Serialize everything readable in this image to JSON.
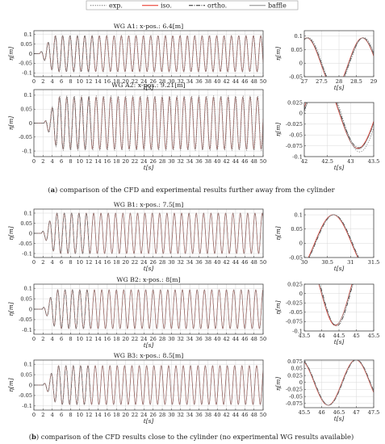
{
  "figure": {
    "legend": [
      {
        "name": "exp.",
        "color": "#666666",
        "dash": "1.2,1.6"
      },
      {
        "name": "iso.",
        "color": "#e8291c",
        "dash": ""
      },
      {
        "name": "ortho.",
        "color": "#222222",
        "dash": "5,1.5,1,1.5"
      },
      {
        "name": "baffle",
        "color": "#888888",
        "dash": ""
      }
    ],
    "captions": [
      {
        "label": "a",
        "text": "comparison of the CFD and experimental results further away from the cylinder"
      },
      {
        "label": "b",
        "text": "comparison of the CFD results close to the cylinder (no experimental WG results available)"
      }
    ]
  },
  "chart_data": [
    {
      "type": "line",
      "title": "WG A1: x-pos.: 6.4[m]",
      "xlabel": "t[s]",
      "ylabel": "η[m]",
      "xlim": [
        0,
        50
      ],
      "ylim": [
        -0.12,
        0.12
      ],
      "xticks": [
        "0",
        "2",
        "4",
        "6",
        "8",
        "10",
        "12",
        "14",
        "16",
        "18",
        "20",
        "22",
        "24",
        "26",
        "28",
        "30",
        "32",
        "34",
        "36",
        "38",
        "40",
        "42",
        "44",
        "46",
        "48",
        "50"
      ],
      "yticks": [
        "0.1",
        "0.05",
        "0",
        "-0.05",
        "-0.1"
      ],
      "ytick_values": [
        0.1,
        0.05,
        0,
        -0.05,
        -0.1
      ],
      "grid": true,
      "wave": {
        "amplitude": 0.093,
        "period": 1.6,
        "phase": 0.5,
        "start": 1.2
      },
      "series": [
        {
          "name": "exp.",
          "shift": 0.04,
          "amp_scale": 1.02
        },
        {
          "name": "iso.",
          "shift": 0.0,
          "amp_scale": 1.0
        },
        {
          "name": "ortho.",
          "shift": 0.02,
          "amp_scale": 1.0,
          "to": 13.2
        },
        {
          "name": "baffle",
          "shift": 0.01,
          "amp_scale": 1.0
        }
      ]
    },
    {
      "type": "line",
      "xlabel": "t[s]",
      "ylabel": "η[m]",
      "xlim": [
        27,
        29
      ],
      "ylim": [
        -0.05,
        0.12
      ],
      "xticks": [
        "27",
        "27.5",
        "28",
        "28.5",
        "29"
      ],
      "yticks": [
        "0.1",
        "0.05",
        "0",
        "-0.05"
      ],
      "ytick_values": [
        0.1,
        0.05,
        0,
        -0.05
      ],
      "grid": true,
      "wave": {
        "amplitude": 0.093,
        "period": 1.6,
        "phase": 0.5,
        "start": 1.2
      },
      "series": [
        {
          "name": "exp.",
          "shift": 0.04,
          "amp_scale": 1.02
        },
        {
          "name": "iso.",
          "shift": 0.0,
          "amp_scale": 1.0
        },
        {
          "name": "ortho.",
          "shift": 0.02,
          "amp_scale": 1.0
        },
        {
          "name": "baffle",
          "shift": 0.01,
          "amp_scale": 1.0
        }
      ]
    },
    {
      "type": "line",
      "title": "WG A2: x-pos.: 9.21[m]",
      "xlabel": "t[s]",
      "ylabel": "η[m]",
      "xlim": [
        0,
        50
      ],
      "ylim": [
        -0.12,
        0.12
      ],
      "xticks": [
        "0",
        "2",
        "4",
        "6",
        "8",
        "10",
        "12",
        "14",
        "16",
        "18",
        "20",
        "22",
        "24",
        "26",
        "28",
        "30",
        "32",
        "34",
        "36",
        "38",
        "40",
        "42",
        "44",
        "46",
        "48",
        "50"
      ],
      "yticks": [
        "0.1",
        "0.05",
        "0",
        "-0.05",
        "-0.1"
      ],
      "ytick_values": [
        0.1,
        0.05,
        0,
        -0.05,
        -0.1
      ],
      "grid": true,
      "wave": {
        "amplitude": 0.093,
        "period": 1.6,
        "phase": 0.95,
        "start": 2.2
      },
      "series": [
        {
          "name": "exp.",
          "shift": 0.05,
          "amp_scale": 1.05
        },
        {
          "name": "iso.",
          "shift": 0.0,
          "amp_scale": 1.0
        },
        {
          "name": "ortho.",
          "shift": 0.02,
          "amp_scale": 1.0,
          "to": 12.6
        },
        {
          "name": "baffle",
          "shift": 0.01,
          "amp_scale": 1.0
        }
      ]
    },
    {
      "type": "line",
      "xlabel": "t[s]",
      "ylabel": "η[m]",
      "xlim": [
        42,
        43.5
      ],
      "ylim": [
        -0.1,
        0.025
      ],
      "xticks": [
        "42",
        "42.5",
        "43",
        "43.5"
      ],
      "yticks": [
        "0.025",
        "0",
        "-0.025",
        "-0.05",
        "-0.075",
        "-0.1"
      ],
      "ytick_values": [
        0.025,
        0,
        -0.025,
        -0.05,
        -0.075,
        -0.1
      ],
      "grid": true,
      "wave": {
        "amplitude": 0.081,
        "period": 1.6,
        "phase": 0.95,
        "start": 2.2
      },
      "series": [
        {
          "name": "exp.",
          "shift": 0.04,
          "amp_scale": 1.1
        },
        {
          "name": "iso.",
          "shift": 0.0,
          "amp_scale": 1.0
        },
        {
          "name": "ortho.",
          "shift": 0.02,
          "amp_scale": 0.98
        },
        {
          "name": "baffle",
          "shift": 0.01,
          "amp_scale": 1.02
        }
      ]
    },
    {
      "type": "line",
      "title": "WG B1: x-pos.: 7.5[m]",
      "xlabel": "t[s]",
      "ylabel": "η[m]",
      "xlim": [
        0,
        50
      ],
      "ylim": [
        -0.12,
        0.12
      ],
      "xticks": [
        "0",
        "2",
        "4",
        "6",
        "8",
        "10",
        "12",
        "14",
        "16",
        "18",
        "20",
        "22",
        "24",
        "26",
        "28",
        "30",
        "32",
        "34",
        "36",
        "38",
        "40",
        "42",
        "44",
        "46",
        "48",
        "50"
      ],
      "yticks": [
        "0.1",
        "0.05",
        "0",
        "-0.05",
        "-0.1"
      ],
      "ytick_values": [
        0.1,
        0.05,
        0,
        -0.05,
        -0.1
      ],
      "grid": true,
      "wave": {
        "amplitude": 0.1,
        "period": 1.6,
        "phase": 0.7,
        "start": 1.6
      },
      "series": [
        {
          "name": "iso.",
          "shift": 0.0,
          "amp_scale": 1.0
        },
        {
          "name": "ortho.",
          "shift": 0.02,
          "amp_scale": 1.0,
          "to": 12.4
        },
        {
          "name": "baffle",
          "shift": 0.01,
          "amp_scale": 1.0
        }
      ]
    },
    {
      "type": "line",
      "xlabel": "t[s]",
      "ylabel": "η[m]",
      "xlim": [
        30,
        31.5
      ],
      "ylim": [
        -0.05,
        0.12
      ],
      "xticks": [
        "30",
        "30.5",
        "31",
        "31.5"
      ],
      "yticks": [
        "0.1",
        "0.05",
        "0",
        "-0.05"
      ],
      "ytick_values": [
        0.1,
        0.05,
        0,
        -0.05
      ],
      "grid": true,
      "wave": {
        "amplitude": 0.1,
        "period": 1.6,
        "phase": 0.7,
        "start": 1.6
      },
      "series": [
        {
          "name": "iso.",
          "shift": 0.0,
          "amp_scale": 1.0
        },
        {
          "name": "ortho.",
          "shift": 0.02,
          "amp_scale": 1.0
        },
        {
          "name": "baffle",
          "shift": 0.01,
          "amp_scale": 1.0
        }
      ]
    },
    {
      "type": "line",
      "title": "WG B2: x-pos.: 8[m]",
      "xlabel": "t[s]",
      "ylabel": "η[m]",
      "xlim": [
        0,
        50
      ],
      "ylim": [
        -0.12,
        0.12
      ],
      "xticks": [
        "0",
        "2",
        "4",
        "6",
        "8",
        "10",
        "12",
        "14",
        "16",
        "18",
        "20",
        "22",
        "24",
        "26",
        "28",
        "30",
        "32",
        "34",
        "36",
        "38",
        "40",
        "42",
        "44",
        "46",
        "48",
        "50"
      ],
      "yticks": [
        "0.1",
        "0.05",
        "0",
        "-0.05",
        "-0.1"
      ],
      "ytick_values": [
        0.1,
        0.05,
        0,
        -0.05,
        -0.1
      ],
      "grid": true,
      "wave": {
        "amplitude": 0.093,
        "period": 1.6,
        "phase": 0.8,
        "start": 1.8
      },
      "series": [
        {
          "name": "iso.",
          "shift": 0.0,
          "amp_scale": 1.0
        },
        {
          "name": "ortho.",
          "shift": 0.02,
          "amp_scale": 1.0,
          "to": 12.4
        },
        {
          "name": "baffle",
          "shift": 0.01,
          "amp_scale": 1.0
        }
      ]
    },
    {
      "type": "line",
      "xlabel": "t[s]",
      "ylabel": "η[m]",
      "xlim": [
        43.5,
        45.5
      ],
      "ylim": [
        -0.1,
        0.025
      ],
      "xticks": [
        "43.5",
        "44",
        "44.5",
        "45",
        "45.5"
      ],
      "yticks": [
        "0.025",
        "0",
        "-0.025",
        "-0.05",
        "-0.075",
        "-0.1"
      ],
      "ytick_values": [
        0.025,
        0,
        -0.025,
        -0.05,
        -0.075,
        -0.1
      ],
      "grid": true,
      "wave": {
        "amplitude": 0.085,
        "period": 1.6,
        "phase": 0.8,
        "start": 1.8
      },
      "series": [
        {
          "name": "iso.",
          "shift": 0.0,
          "amp_scale": 1.0
        },
        {
          "name": "ortho.",
          "shift": 0.03,
          "amp_scale": 1.02
        },
        {
          "name": "baffle",
          "shift": 0.01,
          "amp_scale": 0.98
        }
      ]
    },
    {
      "type": "line",
      "title": "WG B3: x-pos.: 8.5[m]",
      "xlabel": "t[s]",
      "ylabel": "η[m]",
      "xlim": [
        0,
        50
      ],
      "ylim": [
        -0.12,
        0.12
      ],
      "xticks": [
        "0",
        "2",
        "4",
        "6",
        "8",
        "10",
        "12",
        "14",
        "16",
        "18",
        "20",
        "22",
        "24",
        "26",
        "28",
        "30",
        "32",
        "34",
        "36",
        "38",
        "40",
        "42",
        "44",
        "46",
        "48",
        "50"
      ],
      "yticks": [
        "0.1",
        "0.05",
        "0",
        "-0.05",
        "-0.1"
      ],
      "ytick_values": [
        0.1,
        0.05,
        0,
        -0.05,
        -0.1
      ],
      "grid": true,
      "wave": {
        "amplitude": 0.093,
        "period": 1.6,
        "phase": 0.85,
        "start": 2.0
      },
      "series": [
        {
          "name": "iso.",
          "shift": 0.0,
          "amp_scale": 1.0
        },
        {
          "name": "ortho.",
          "shift": 0.02,
          "amp_scale": 1.0,
          "to": 12.4
        },
        {
          "name": "baffle",
          "shift": 0.01,
          "amp_scale": 1.0
        }
      ]
    },
    {
      "type": "line",
      "xlabel": "t[s]",
      "ylabel": "η[m]",
      "xlim": [
        45.5,
        47.5
      ],
      "ylim": [
        -0.09,
        0.08
      ],
      "xticks": [
        "45.5",
        "46",
        "46.5",
        "47",
        "47.5"
      ],
      "yticks": [
        "0.075",
        "0.05",
        "0.025",
        "0",
        "-0.025",
        "-0.05",
        "-0.075"
      ],
      "ytick_values": [
        0.075,
        0.05,
        0.025,
        0,
        -0.025,
        -0.05,
        -0.075
      ],
      "grid": true,
      "wave": {
        "amplitude": 0.081,
        "period": 1.6,
        "phase": 0.85,
        "start": 2.0
      },
      "series": [
        {
          "name": "iso.",
          "shift": 0.0,
          "amp_scale": 1.0
        },
        {
          "name": "ortho.",
          "shift": 0.02,
          "amp_scale": 1.0
        },
        {
          "name": "baffle",
          "shift": 0.01,
          "amp_scale": 1.0
        }
      ]
    }
  ]
}
